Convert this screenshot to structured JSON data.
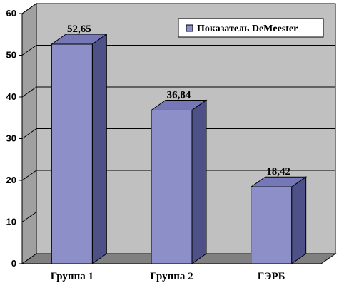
{
  "chart_data": {
    "type": "bar",
    "categories": [
      "Группа 1",
      "Группа 2",
      "ГЭРБ"
    ],
    "series": [
      {
        "name": "Показатель DeMeester",
        "values": [
          52.65,
          36.84,
          18.42
        ],
        "labels": [
          "52,65",
          "36,84",
          "18,42"
        ]
      }
    ],
    "ylim": [
      0,
      60
    ],
    "yticks": [
      0,
      10,
      20,
      30,
      40,
      50,
      60
    ],
    "grid": true,
    "legend_position": "top-right",
    "style": "3d",
    "colors": {
      "bar_front": "#8d8fc9",
      "bar_side": "#4e5088",
      "bar_top": "#7577b6",
      "wall": "#c0c0c0",
      "floor": "#808080",
      "gridline": "#000000"
    }
  }
}
